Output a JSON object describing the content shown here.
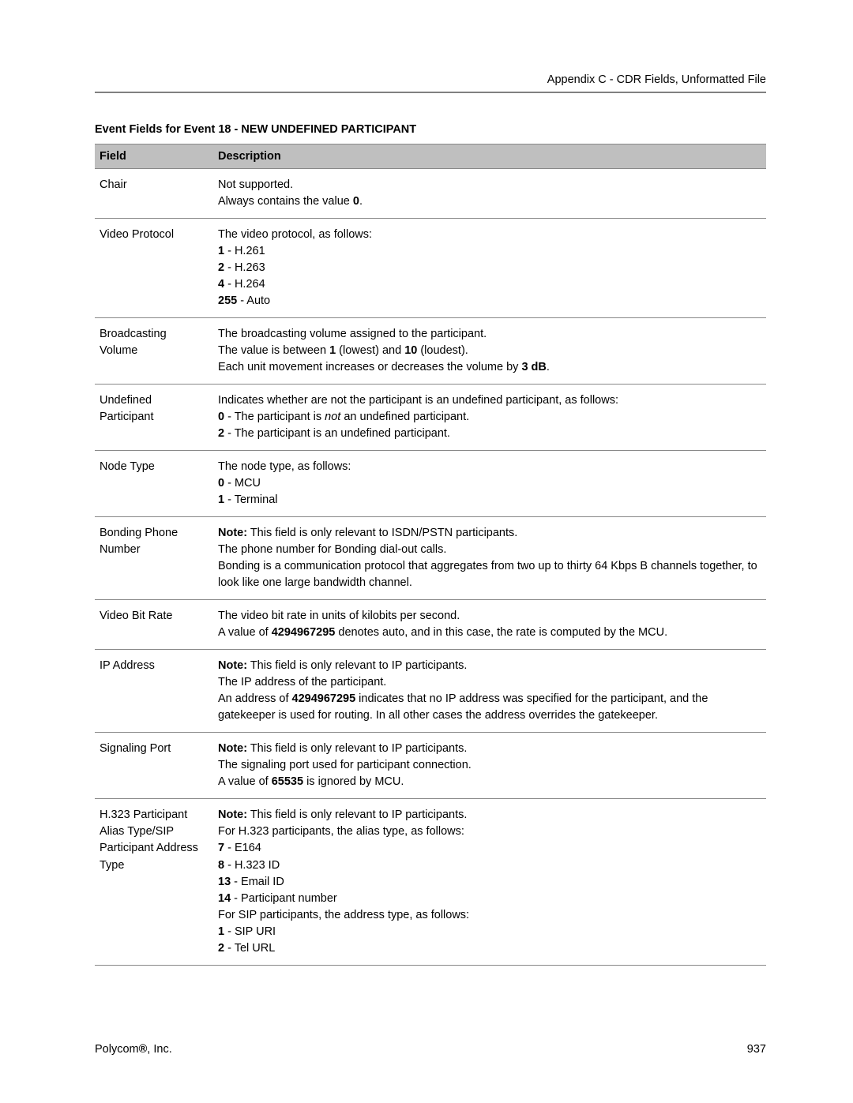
{
  "header": {
    "breadcrumb": "Appendix C - CDR Fields, Unformatted File"
  },
  "table": {
    "title_prefix": "Event Fields for Event 18 - ",
    "title_suffix": "NEW UNDEFINED PARTICIPANT",
    "columns": {
      "field": "Field",
      "description": "Description"
    },
    "rows": [
      {
        "field": "Chair",
        "lines": [
          [
            {
              "t": "Not supported."
            }
          ],
          [
            {
              "t": "Always contains the value "
            },
            {
              "t": "0",
              "b": true
            },
            {
              "t": "."
            }
          ]
        ]
      },
      {
        "field": "Video Protocol",
        "lines": [
          [
            {
              "t": "The video protocol, as follows:"
            }
          ],
          [
            {
              "t": "1",
              "b": true
            },
            {
              "t": " - H.261"
            }
          ],
          [
            {
              "t": "2",
              "b": true
            },
            {
              "t": " - H.263"
            }
          ],
          [
            {
              "t": "4",
              "b": true
            },
            {
              "t": " - H.264"
            }
          ],
          [
            {
              "t": "255",
              "b": true
            },
            {
              "t": " - Auto"
            }
          ]
        ]
      },
      {
        "field": "Broadcasting Volume",
        "lines": [
          [
            {
              "t": "The broadcasting volume assigned to the participant."
            }
          ],
          [
            {
              "t": "The value is between "
            },
            {
              "t": "1",
              "b": true
            },
            {
              "t": " (lowest) and "
            },
            {
              "t": "10",
              "b": true
            },
            {
              "t": " (loudest)."
            }
          ],
          [
            {
              "t": "Each unit movement increases or decreases the volume by "
            },
            {
              "t": "3 dB",
              "b": true
            },
            {
              "t": "."
            }
          ]
        ]
      },
      {
        "field": "Undefined Participant",
        "lines": [
          [
            {
              "t": "Indicates whether are not the participant is an undefined participant, as follows:"
            }
          ],
          [
            {
              "t": "0",
              "b": true
            },
            {
              "t": " - The participant is "
            },
            {
              "t": "not",
              "i": true
            },
            {
              "t": " an undefined participant."
            }
          ],
          [
            {
              "t": "2",
              "b": true
            },
            {
              "t": " - The participant is an undefined participant."
            }
          ]
        ]
      },
      {
        "field": "Node Type",
        "lines": [
          [
            {
              "t": "The node type, as follows:"
            }
          ],
          [
            {
              "t": "0",
              "b": true
            },
            {
              "t": " - MCU"
            }
          ],
          [
            {
              "t": "1",
              "b": true
            },
            {
              "t": " - Terminal"
            }
          ]
        ]
      },
      {
        "field": "Bonding Phone Number",
        "lines": [
          [
            {
              "t": "Note:",
              "b": true
            },
            {
              "t": " This field is only relevant to ISDN/PSTN participants."
            }
          ],
          [
            {
              "t": "The phone number for Bonding dial-out calls."
            }
          ],
          [
            {
              "t": "Bonding is a communication protocol that aggregates from two up to thirty 64 Kbps B channels together, to look like one large bandwidth channel."
            }
          ]
        ]
      },
      {
        "field": "Video Bit Rate",
        "lines": [
          [
            {
              "t": "The video bit rate in units of kilobits per second."
            }
          ],
          [
            {
              "t": "A value of "
            },
            {
              "t": "4294967295",
              "b": true
            },
            {
              "t": " denotes auto, and in this case, the rate is computed by the MCU."
            }
          ]
        ]
      },
      {
        "field": "IP Address",
        "lines": [
          [
            {
              "t": "Note:",
              "b": true
            },
            {
              "t": " This field is only relevant to IP participants."
            }
          ],
          [
            {
              "t": "The IP address of the participant."
            }
          ],
          [
            {
              "t": "An address of "
            },
            {
              "t": "4294967295",
              "b": true
            },
            {
              "t": " indicates that no IP address was specified for the participant, and the gatekeeper is used for routing. In all other cases the address overrides the gatekeeper."
            }
          ]
        ]
      },
      {
        "field": "Signaling Port",
        "lines": [
          [
            {
              "t": "Note:",
              "b": true
            },
            {
              "t": " This field is only relevant to IP participants."
            }
          ],
          [
            {
              "t": "The signaling port used for participant connection."
            }
          ],
          [
            {
              "t": "A value of "
            },
            {
              "t": "65535",
              "b": true
            },
            {
              "t": " is ignored by MCU."
            }
          ]
        ]
      },
      {
        "field": "H.323 Participant Alias Type/SIP Participant Address Type",
        "lines": [
          [
            {
              "t": "Note:",
              "b": true
            },
            {
              "t": " This field is only relevant to IP participants."
            }
          ],
          [
            {
              "t": "For H.323 participants, the alias type, as follows:"
            }
          ],
          [
            {
              "t": "7",
              "b": true
            },
            {
              "t": " - E164"
            }
          ],
          [
            {
              "t": "8",
              "b": true
            },
            {
              "t": " - H.323 ID"
            }
          ],
          [
            {
              "t": "13",
              "b": true
            },
            {
              "t": " - Email ID"
            }
          ],
          [
            {
              "t": "14",
              "b": true
            },
            {
              "t": " - Participant number"
            }
          ],
          [
            {
              "t": "For SIP participants, the address type, as follows:"
            }
          ],
          [
            {
              "t": "1",
              "b": true
            },
            {
              "t": " - SIP URI"
            }
          ],
          [
            {
              "t": "2",
              "b": true
            },
            {
              "t": " - Tel URL"
            }
          ]
        ]
      }
    ]
  },
  "footer": {
    "company_prefix": "Polycom",
    "company_suffix": ", Inc.",
    "registered": "®",
    "page_number": "937"
  }
}
